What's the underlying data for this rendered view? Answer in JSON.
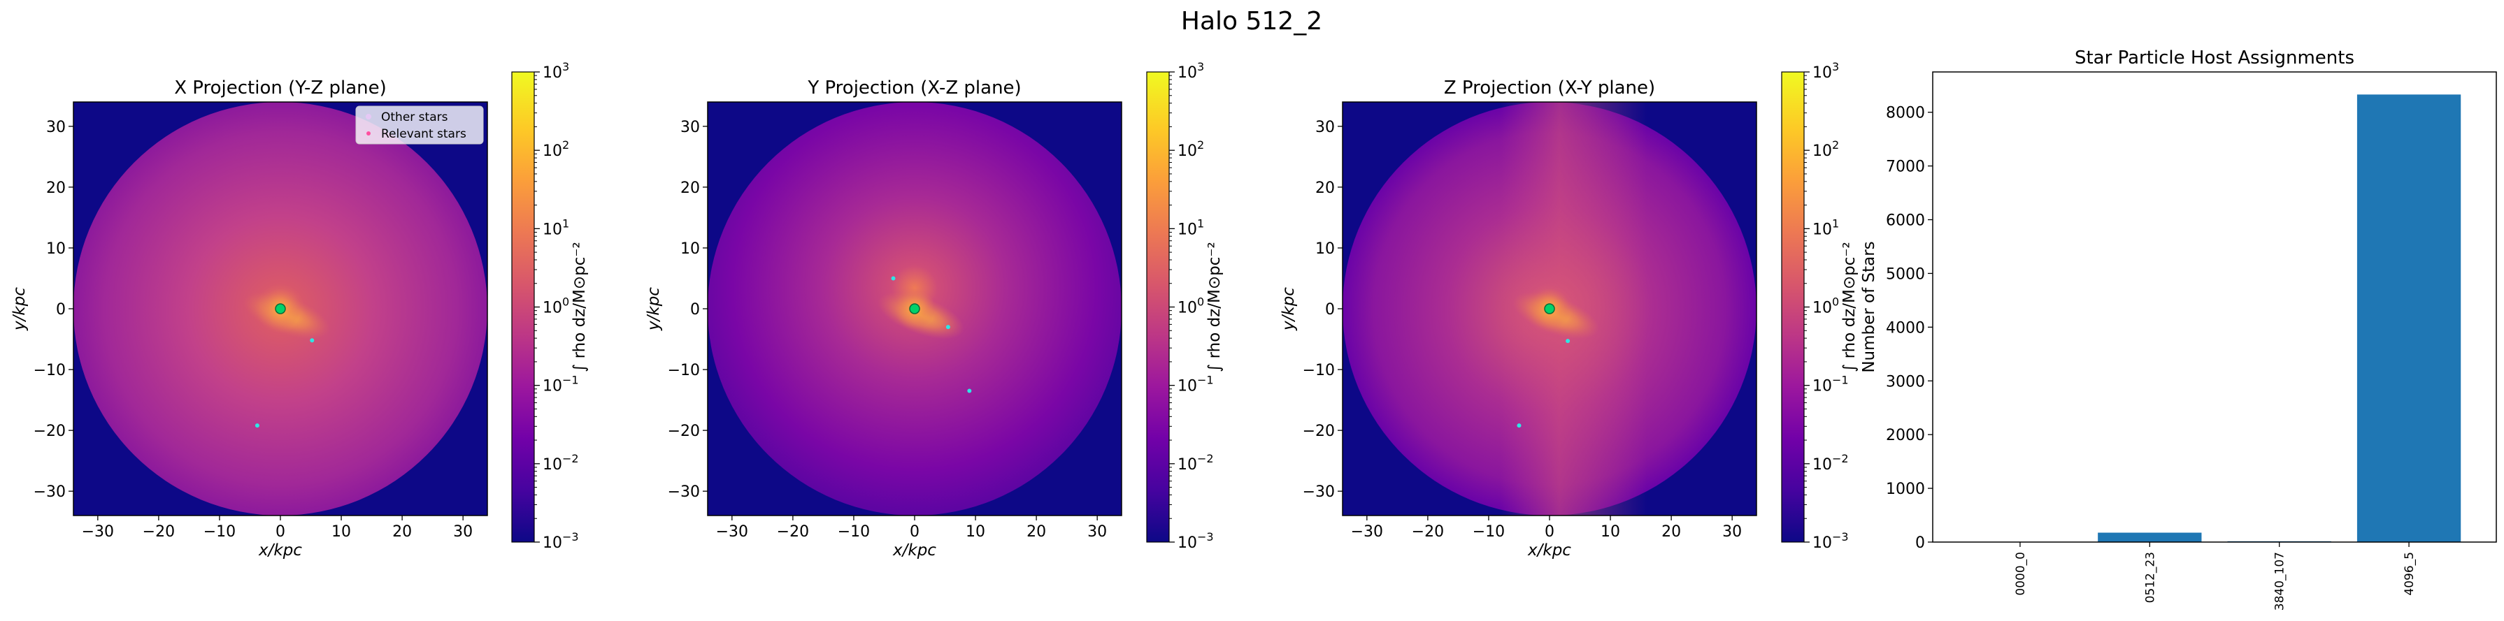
{
  "figure": {
    "suptitle": "Halo 512_2"
  },
  "colors": {
    "plasma": [
      "#0d0887",
      "#46039f",
      "#7201a8",
      "#9c179e",
      "#bd3786",
      "#d8576b",
      "#ed7953",
      "#fb9f3a",
      "#fdca26",
      "#f0f921"
    ],
    "bar": "#1f77b4",
    "star_relevant": "#ff4fa0",
    "star_other": "#e6c8f5",
    "halo_marker": "#00d26a",
    "star_cyan": "#2ee6e6"
  },
  "projections": [
    {
      "title": "X Projection (Y-Z plane)",
      "xlabel": "x/kpc",
      "ylabel": "y/kpc",
      "xlim": [
        -34,
        34
      ],
      "ylim": [
        -34,
        34
      ],
      "xticks": [
        "−30",
        "−20",
        "−10",
        "0",
        "10",
        "20",
        "30"
      ],
      "yticks": [
        "−30",
        "−20",
        "−10",
        "0",
        "10",
        "20",
        "30"
      ],
      "disk_radius_kpc": 34,
      "center_kpc": [
        0,
        0
      ],
      "star_points_kpc": [
        [
          5.2,
          -5.2
        ],
        [
          -3.8,
          -19.2
        ]
      ],
      "legend": [
        "Other stars",
        "Relevant stars"
      ]
    },
    {
      "title": "Y Projection (X-Z plane)",
      "xlabel": "x/kpc",
      "ylabel": "y/kpc",
      "xlim": [
        -34,
        34
      ],
      "ylim": [
        -34,
        34
      ],
      "xticks": [
        "−30",
        "−20",
        "−10",
        "0",
        "10",
        "20",
        "30"
      ],
      "yticks": [
        "−30",
        "−20",
        "−10",
        "0",
        "10",
        "20",
        "30"
      ],
      "disk_radius_kpc": 34,
      "center_kpc": [
        0,
        0
      ],
      "star_points_kpc": [
        [
          -3.5,
          5.0
        ],
        [
          5.5,
          -3.0
        ],
        [
          9.0,
          -13.5
        ]
      ]
    },
    {
      "title": "Z Projection (X-Y plane)",
      "xlabel": "x/kpc",
      "ylabel": "y/kpc",
      "xlim": [
        -34,
        34
      ],
      "ylim": [
        -34,
        34
      ],
      "xticks": [
        "−30",
        "−20",
        "−10",
        "0",
        "10",
        "20",
        "30"
      ],
      "yticks": [
        "−30",
        "−20",
        "−10",
        "0",
        "10",
        "20",
        "30"
      ],
      "disk_radius_kpc": 34,
      "center_kpc": [
        0,
        0
      ],
      "star_points_kpc": [
        [
          3.0,
          -5.3
        ],
        [
          -5.0,
          -19.2
        ]
      ]
    }
  ],
  "colorbar": {
    "label": "∫ rho dz/M⊙pc⁻²",
    "scale": "log",
    "range": [
      0.001,
      1000
    ],
    "ticks": [
      {
        "base": "10",
        "exp": "3",
        "value": 1000
      },
      {
        "base": "10",
        "exp": "2",
        "value": 100
      },
      {
        "base": "10",
        "exp": "1",
        "value": 10
      },
      {
        "base": "10",
        "exp": "0",
        "value": 1
      },
      {
        "base": "10",
        "exp": "−1",
        "value": 0.1
      },
      {
        "base": "10",
        "exp": "−2",
        "value": 0.01
      },
      {
        "base": "10",
        "exp": "−3",
        "value": 0.001
      }
    ]
  },
  "chart_data": [
    {
      "type": "bar",
      "title": "Star Particle Host Assignments",
      "xlabel": "",
      "ylabel": "Number of Stars",
      "categories": [
        "0000_0",
        "0512_23",
        "3840_107",
        "4096_5"
      ],
      "values": [
        3,
        175,
        15,
        8330
      ],
      "ylim": [
        0,
        8750
      ],
      "yticks": [
        0,
        1000,
        2000,
        3000,
        4000,
        5000,
        6000,
        7000,
        8000
      ],
      "grid": false
    }
  ]
}
